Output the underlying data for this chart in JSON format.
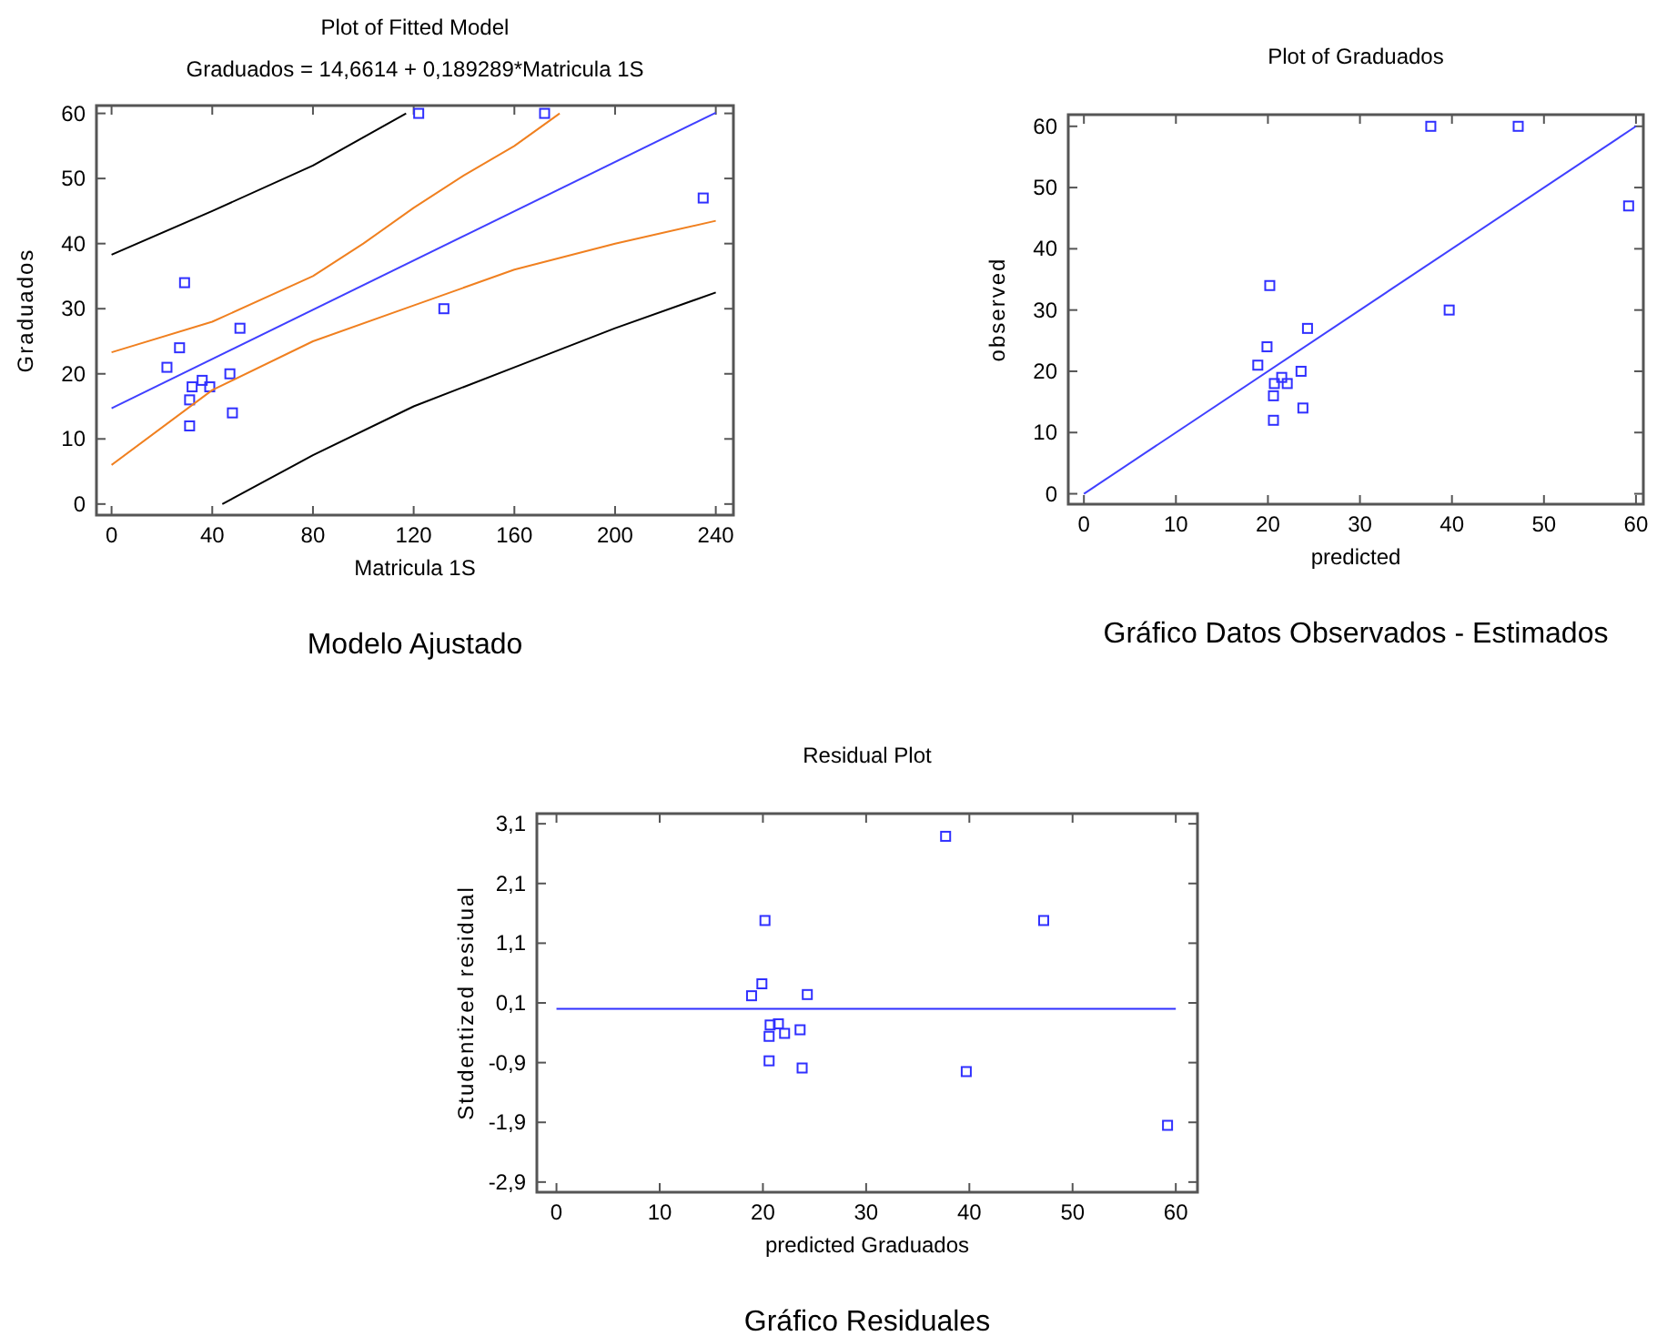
{
  "chart_data": [
    {
      "type": "scatter",
      "title": "Plot of Fitted Model",
      "subtitle": "Graduados = 14,6614 + 0,189289*Matricula 1S",
      "xlabel": "Matricula 1S",
      "ylabel": "Graduados",
      "annotations": [
        "Modelo Ajustado"
      ],
      "xlim": [
        -6,
        247
      ],
      "ylim": [
        -1.7,
        61.2
      ],
      "xticks": [
        0,
        40,
        80,
        120,
        160,
        200,
        240
      ],
      "yticks": [
        0,
        10,
        20,
        30,
        40,
        50,
        60
      ],
      "grid": false,
      "series": [
        {
          "marker": "square",
          "color": "#3030ff",
          "x": [
            22,
            27,
            29,
            31,
            31,
            32,
            36,
            39,
            47,
            48,
            51,
            122,
            132,
            172,
            235
          ],
          "values": [
            21,
            24,
            34,
            16,
            12,
            18,
            19,
            18,
            20,
            14,
            27,
            60,
            30,
            60,
            47
          ]
        },
        {
          "type": "line",
          "color": "#4040ff",
          "x": [
            0,
            240
          ],
          "values": [
            14.7,
            60.1
          ]
        },
        {
          "type": "line",
          "color": "#f08020",
          "x": [
            0,
            40,
            80,
            100,
            120,
            140,
            160,
            178
          ],
          "values": [
            23.3,
            28,
            35,
            40,
            45.5,
            50.5,
            55,
            60
          ]
        },
        {
          "type": "line",
          "color": "#f08020",
          "x": [
            0,
            40,
            80,
            120,
            160,
            200,
            240
          ],
          "values": [
            6,
            17.5,
            25,
            30.5,
            36,
            40,
            43.5
          ]
        },
        {
          "type": "line",
          "color": "#000000",
          "x": [
            0,
            40,
            80,
            117
          ],
          "values": [
            38.3,
            45,
            52,
            60
          ]
        },
        {
          "type": "line",
          "color": "#000000",
          "x": [
            44,
            80,
            120,
            160,
            200,
            240
          ],
          "values": [
            0,
            7.5,
            15,
            21,
            27,
            32.5
          ]
        }
      ]
    },
    {
      "type": "scatter",
      "title": "Plot of Graduados",
      "xlabel": "predicted",
      "ylabel": "observed",
      "annotations": [
        "Gráfico Datos Observados - Estimados"
      ],
      "xlim": [
        -1.7,
        60.8
      ],
      "ylim": [
        -1.7,
        61.9
      ],
      "xticks": [
        0,
        10,
        20,
        30,
        40,
        50,
        60
      ],
      "yticks": [
        0,
        10,
        20,
        30,
        40,
        50,
        60
      ],
      "grid": false,
      "series": [
        {
          "marker": "square",
          "color": "#3030ff",
          "x": [
            18.9,
            19.9,
            20.2,
            20.6,
            20.6,
            20.7,
            21.5,
            22.1,
            23.6,
            23.8,
            24.3,
            37.7,
            39.7,
            47.2,
            59.2
          ],
          "values": [
            21,
            24,
            34,
            16,
            12,
            18,
            19,
            18,
            20,
            14,
            27,
            60,
            30,
            60,
            47
          ]
        },
        {
          "type": "line",
          "color": "#4040ff",
          "x": [
            0,
            60
          ],
          "values": [
            0,
            60
          ]
        }
      ]
    },
    {
      "type": "scatter",
      "title": "Residual Plot",
      "xlabel": "predicted Graduados",
      "ylabel": "Studentized residual",
      "annotations": [
        "Gráfico Residuales"
      ],
      "xlim": [
        -1.9,
        62.1
      ],
      "ylim": [
        -3.07,
        3.27
      ],
      "xticks": [
        0,
        10,
        20,
        30,
        40,
        50,
        60
      ],
      "yticks": [
        {
          "value": 3.1,
          "label": "3,1"
        },
        {
          "value": 2.1,
          "label": "2,1"
        },
        {
          "value": 1.1,
          "label": "1,1"
        },
        {
          "value": 0.1,
          "label": "0,1"
        },
        {
          "value": -0.9,
          "label": "-0,9"
        },
        {
          "value": -1.9,
          "label": "-1,9"
        },
        {
          "value": -2.9,
          "label": "-2,9"
        }
      ],
      "grid": false,
      "ref_lines": [
        {
          "axis": "y",
          "value": 0,
          "color": "#3030ff"
        }
      ],
      "series": [
        {
          "marker": "square",
          "color": "#3030ff",
          "x": [
            18.9,
            19.9,
            20.2,
            20.6,
            20.6,
            20.7,
            21.5,
            22.1,
            23.6,
            23.8,
            24.3,
            37.7,
            39.7,
            47.2,
            59.2
          ],
          "values": [
            0.22,
            0.42,
            1.48,
            -0.87,
            -0.46,
            -0.27,
            -0.25,
            -0.41,
            -0.35,
            -0.99,
            0.24,
            2.89,
            -1.05,
            1.48,
            -1.95
          ]
        }
      ]
    }
  ]
}
